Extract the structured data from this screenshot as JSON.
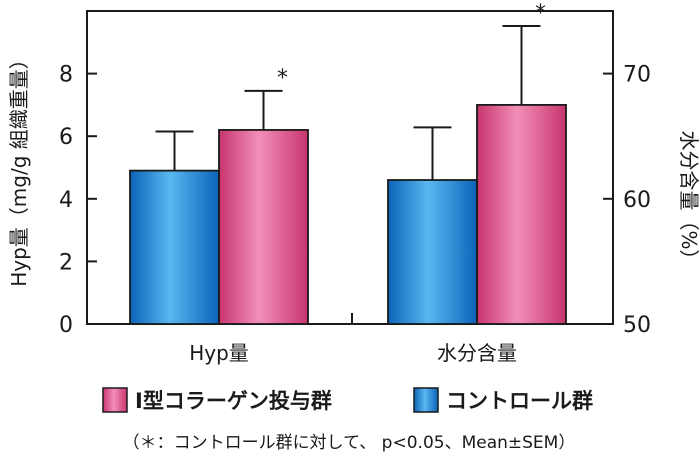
{
  "chart_data": {
    "type": "bar",
    "categories": [
      "Hyp量",
      "水分含量"
    ],
    "series": [
      {
        "name": "コントロール群",
        "color": "#1a8fd8",
        "values": [
          4.9,
          61.5
        ],
        "errors": [
          1.25,
          4.2
        ]
      },
      {
        "name": "Ⅰ型コラーゲン投与群",
        "color": "#d94f86",
        "values": [
          6.2,
          67.5
        ],
        "errors": [
          1.25,
          6.3
        ]
      }
    ],
    "significance": [
      [
        "",
        "*"
      ],
      [
        "",
        "*"
      ]
    ],
    "y_left": {
      "label": "Hyp量（mg/g 組織重量）",
      "ylim": [
        0,
        10
      ],
      "ticks": [
        "0",
        "2",
        "4",
        "6",
        "8"
      ],
      "tick_values": [
        0,
        2,
        4,
        6,
        8
      ]
    },
    "y_right": {
      "label": "水分含量（%）",
      "ylim": [
        50,
        75
      ],
      "ticks": [
        "50",
        "60",
        "70"
      ],
      "tick_values": [
        50,
        60,
        70
      ]
    },
    "legend": {
      "placement": "bottom",
      "order": [
        "Ⅰ型コラーゲン投与群",
        "コントロール群"
      ]
    },
    "note": "（＊：コントロール群に対して、 p<0.05、Mean±SEM）",
    "grid": false
  }
}
